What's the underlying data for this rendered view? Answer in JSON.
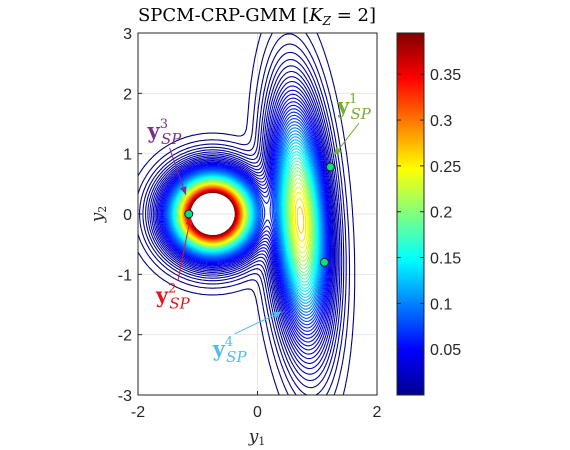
{
  "chart_data": {
    "type": "contour",
    "title": {
      "main": "SPCM-CRP-GMM [",
      "k": "K",
      "k_sub": "Z",
      "eq": " = 2]"
    },
    "xlabel": {
      "base": "y",
      "sub": "1"
    },
    "ylabel": {
      "base": "y",
      "sub": "2"
    },
    "xlim": [
      -2,
      2
    ],
    "ylim": [
      -3,
      3
    ],
    "x_ticks": [
      -2,
      0,
      2
    ],
    "x_tick_labels": [
      "-2",
      "0",
      "2"
    ],
    "y_ticks": [
      -3,
      -2,
      -1,
      0,
      1,
      2,
      3
    ],
    "y_tick_labels": [
      "-3",
      "-2",
      "-1",
      "0",
      "1",
      "2",
      "3"
    ],
    "grid": true,
    "colormap": "jet",
    "colorbar": {
      "range": [
        0,
        0.395
      ],
      "ticks": [
        0.05,
        0.1,
        0.15,
        0.2,
        0.25,
        0.3,
        0.35
      ],
      "tick_labels": [
        "0.05",
        "0.1",
        "0.15",
        "0.2",
        "0.25",
        "0.3",
        "0.35"
      ]
    },
    "contour_levels": {
      "count": 56,
      "max": 0.39
    },
    "components": [
      {
        "mean": [
          -0.75,
          0.0
        ],
        "sx": 0.38,
        "sy": 0.36,
        "rho": 0.0,
        "weight": 0.55
      },
      {
        "mean": [
          0.72,
          -0.1
        ],
        "sx": 0.26,
        "sy": 1.05,
        "rho": -0.25,
        "weight": 0.45
      }
    ],
    "points": [
      {
        "x": 1.22,
        "y": 0.78,
        "color": "#00e08a"
      },
      {
        "x": -1.15,
        "y": 0.0,
        "color": "#00e08a"
      },
      {
        "x": 1.12,
        "y": -0.8,
        "color": "#00e08a"
      }
    ],
    "annotations": [
      {
        "base": "y",
        "sub": "SP",
        "sup": "1",
        "color": "#77ac30",
        "text_at": [
          1.33,
          1.67
        ],
        "arrow_to": [
          1.28,
          0.97
        ]
      },
      {
        "base": "y",
        "sub": "SP",
        "sup": "3",
        "color": "#7e2f8e",
        "text_at": [
          -1.84,
          1.26
        ],
        "arrow_to": [
          -1.2,
          0.32
        ]
      },
      {
        "base": "y",
        "sub": "SP",
        "sup": "2",
        "color": "#e3141e",
        "text_at": [
          -1.7,
          -1.47
        ],
        "arrow_to": [
          -1.12,
          -0.05
        ]
      },
      {
        "base": "y",
        "sub": "SP",
        "sup": "4",
        "color": "#4dbeee",
        "text_at": [
          -0.75,
          -2.35
        ],
        "arrow_to": [
          0.4,
          -1.62
        ]
      }
    ]
  }
}
